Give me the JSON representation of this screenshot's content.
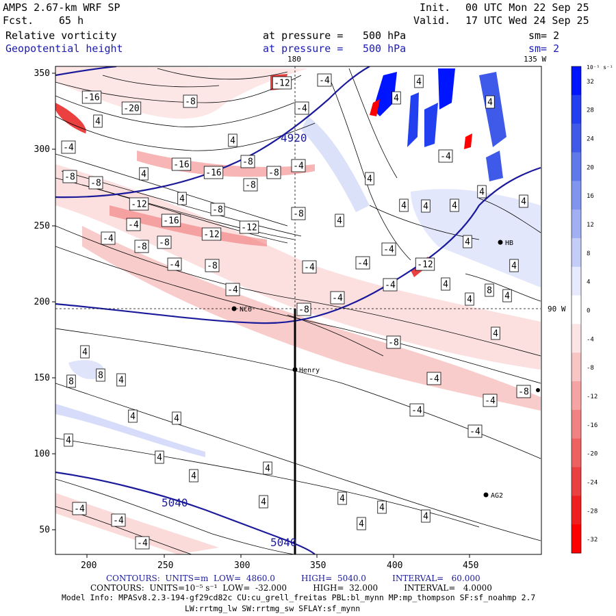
{
  "header": {
    "model": "AMPS 2.67-km WRF SP",
    "forecast_label": "Fcst.",
    "forecast_hours": "65 h",
    "init_label": "Init.",
    "init_time": "00 UTC Mon 22 Sep 25",
    "valid_label": "Valid.",
    "valid_time": "17 UTC Wed 24 Sep 25"
  },
  "fields": [
    {
      "name": "Relative vorticity",
      "pressure_label": "at pressure =",
      "pressure": "500 hPa",
      "smooth": "sm= 2",
      "color": "#000000"
    },
    {
      "name": "Geopotential height",
      "pressure_label": "at pressure =",
      "pressure": "500 hPa",
      "smooth": "sm= 2",
      "color": "#1a1ab0"
    }
  ],
  "map": {
    "x_ticks": [
      "200",
      "250",
      "300",
      "350",
      "400",
      "450"
    ],
    "y_ticks": [
      "350",
      "300",
      "250",
      "200",
      "150",
      "100",
      "50"
    ],
    "meridian_labels": {
      "top": "180",
      "top_right": "135 W",
      "right": "90 W"
    },
    "stations": [
      {
        "name": "NCO"
      },
      {
        "name": "Henry"
      },
      {
        "name": "HB"
      },
      {
        "name": "AG2"
      }
    ],
    "height_contour_labels": [
      "4920",
      "5040",
      "5040"
    ],
    "vorticity_labels": {
      "neg16": "-16",
      "neg20": "-20",
      "neg12": "-12",
      "neg8": "-8",
      "neg4": "-4",
      "pos4": "4",
      "pos8": "8"
    }
  },
  "colorbar": {
    "units": "10⁻⁵ s⁻¹",
    "ticks": [
      "32",
      "28",
      "24",
      "20",
      "16",
      "12",
      "8",
      "4",
      "0",
      "-4",
      "-8",
      "-12",
      "-16",
      "-20",
      "-24",
      "-28",
      "-32"
    ],
    "colors": [
      "#0015ff",
      "#2240f0",
      "#3f5ae8",
      "#5f78ea",
      "#7f95ee",
      "#a0b0f2",
      "#c4cdf7",
      "#e6eafc",
      "#ffffff",
      "#fde4e4",
      "#f9c4c4",
      "#f5a3a3",
      "#f18282",
      "#ee6161",
      "#ea4040",
      "#f01f1f",
      "#ff0000"
    ]
  },
  "footer": {
    "contours_height": "CONTOURS:  UNITS=m  LOW=  4860.0          HIGH=  5040.0          INTERVAL=   60.000",
    "contours_vort": "CONTOURS:  UNITS=10⁻⁵ s⁻¹  LOW=  -32.000          HIGH=  32.000          INTERVAL=   4.0000",
    "model_info_1": "Model Info: MPASv8.2.3-194-gf29cd82c CU:cu_grell_freitas PBL:bl_mynn MP:mp_thompson SF:sf_noahmp 2.7",
    "model_info_2": "LW:rrtmg_lw SW:rrtmg_sw SFLAY:sf_mynn"
  }
}
